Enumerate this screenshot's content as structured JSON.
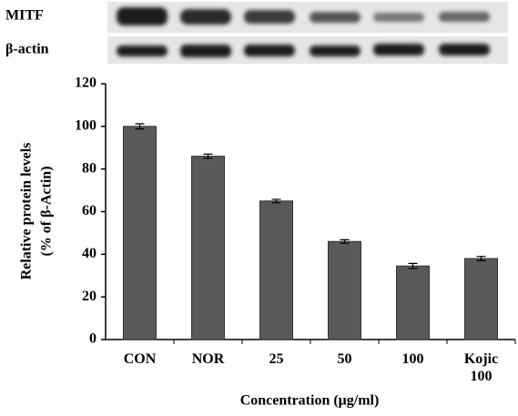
{
  "blot": {
    "labels": [
      "MITF",
      "β-actin"
    ]
  },
  "chart_data": {
    "type": "bar",
    "y_label": [
      "Relative protein levels",
      "(% of β-Actin)"
    ],
    "x_label": "Concentration  (μg/ml)",
    "categories": [
      "CON",
      "NOR",
      "25",
      "50",
      "100",
      "Kojic 100"
    ],
    "values": [
      100,
      86,
      65,
      46,
      34.5,
      38
    ],
    "errors": [
      1.2,
      1,
      0.8,
      0.8,
      1.2,
      1
    ],
    "color": "#595959",
    "ylim": [
      0,
      120
    ],
    "yticks": [
      0,
      20,
      40,
      60,
      80,
      100,
      120
    ]
  }
}
